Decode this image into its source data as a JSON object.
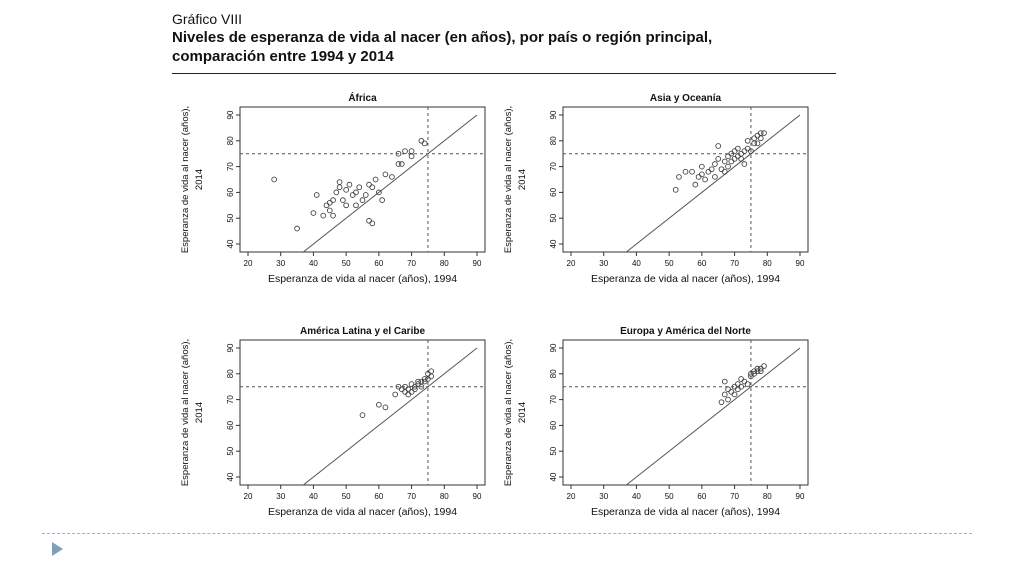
{
  "figure": {
    "label": "Gráfico VIII",
    "title_line1": "Niveles de esperanza de vida al nacer (en años), por país o región principal,",
    "title_line2": "comparación entre 1994 y 2014"
  },
  "colors": {
    "text": "#111111",
    "points": "#444444",
    "lines": "#555555",
    "accent_bullet": "#7f9fc0"
  },
  "icons": {
    "bullet": "triangle-right-icon"
  },
  "chart_data": [
    {
      "type": "scatter",
      "title": "África",
      "xlabel": "Esperanza de vida al nacer (años), 1994",
      "ylabel_line1": "Esperanza de vida al nacer (años),",
      "ylabel_line2": "2014",
      "xlim": [
        20,
        90
      ],
      "ylim": [
        40,
        90
      ],
      "xticks": [
        20,
        30,
        40,
        50,
        60,
        70,
        80,
        90
      ],
      "yticks": [
        40,
        50,
        60,
        70,
        80,
        90
      ],
      "reference_lines": {
        "diagonal": "y = x",
        "vline_x": 75,
        "hline_y": 75
      },
      "points": [
        [
          28,
          65
        ],
        [
          35,
          46
        ],
        [
          40,
          52
        ],
        [
          41,
          59
        ],
        [
          43,
          51
        ],
        [
          44,
          55
        ],
        [
          45,
          53
        ],
        [
          45,
          56
        ],
        [
          46,
          51
        ],
        [
          46,
          57
        ],
        [
          47,
          60
        ],
        [
          48,
          64
        ],
        [
          48,
          62
        ],
        [
          49,
          57
        ],
        [
          50,
          55
        ],
        [
          50,
          61
        ],
        [
          51,
          63
        ],
        [
          52,
          59
        ],
        [
          53,
          60
        ],
        [
          53,
          55
        ],
        [
          54,
          62
        ],
        [
          55,
          57
        ],
        [
          56,
          59
        ],
        [
          57,
          63
        ],
        [
          57,
          49
        ],
        [
          58,
          48
        ],
        [
          58,
          62
        ],
        [
          59,
          65
        ],
        [
          60,
          60
        ],
        [
          61,
          57
        ],
        [
          62,
          67
        ],
        [
          64,
          66
        ],
        [
          66,
          71
        ],
        [
          66,
          75
        ],
        [
          67,
          71
        ],
        [
          68,
          76
        ],
        [
          70,
          74
        ],
        [
          70,
          76
        ],
        [
          73,
          80
        ],
        [
          74,
          79
        ]
      ]
    },
    {
      "type": "scatter",
      "title": "Asia y Oceanía",
      "xlabel": "Esperanza de vida al nacer (años), 1994",
      "ylabel_line1": "Esperanza de vida al nacer (años),",
      "ylabel_line2": "2014",
      "xlim": [
        20,
        90
      ],
      "ylim": [
        40,
        90
      ],
      "xticks": [
        20,
        30,
        40,
        50,
        60,
        70,
        80,
        90
      ],
      "yticks": [
        40,
        50,
        60,
        70,
        80,
        90
      ],
      "reference_lines": {
        "diagonal": "y = x",
        "vline_x": 75,
        "hline_y": 75
      },
      "points": [
        [
          52,
          61
        ],
        [
          53,
          66
        ],
        [
          55,
          68
        ],
        [
          57,
          68
        ],
        [
          58,
          63
        ],
        [
          59,
          66
        ],
        [
          60,
          67
        ],
        [
          60,
          70
        ],
        [
          61,
          65
        ],
        [
          62,
          68
        ],
        [
          63,
          69
        ],
        [
          64,
          71
        ],
        [
          64,
          66
        ],
        [
          65,
          73
        ],
        [
          65,
          78
        ],
        [
          66,
          69
        ],
        [
          67,
          72
        ],
        [
          67,
          68
        ],
        [
          68,
          74
        ],
        [
          68,
          70
        ],
        [
          69,
          75
        ],
        [
          69,
          72
        ],
        [
          70,
          76
        ],
        [
          70,
          73
        ],
        [
          71,
          74
        ],
        [
          71,
          77
        ],
        [
          72,
          75
        ],
        [
          72,
          73
        ],
        [
          73,
          76
        ],
        [
          73,
          71
        ],
        [
          74,
          77
        ],
        [
          74,
          80
        ],
        [
          75,
          76
        ],
        [
          76,
          79
        ],
        [
          76,
          81
        ],
        [
          77,
          79
        ],
        [
          77,
          82
        ],
        [
          78,
          81
        ],
        [
          78,
          83
        ],
        [
          79,
          83
        ]
      ]
    },
    {
      "type": "scatter",
      "title": "América Latina y el Caribe",
      "xlabel": "Esperanza de vida al nacer (años), 1994",
      "ylabel_line1": "Esperanza de vida al nacer (años),",
      "ylabel_line2": "2014",
      "xlim": [
        20,
        90
      ],
      "ylim": [
        40,
        90
      ],
      "xticks": [
        20,
        30,
        40,
        50,
        60,
        70,
        80,
        90
      ],
      "yticks": [
        40,
        50,
        60,
        70,
        80,
        90
      ],
      "reference_lines": {
        "diagonal": "y = x",
        "vline_x": 75,
        "hline_y": 75
      },
      "points": [
        [
          55,
          64
        ],
        [
          60,
          68
        ],
        [
          62,
          67
        ],
        [
          65,
          72
        ],
        [
          66,
          75
        ],
        [
          67,
          74
        ],
        [
          68,
          73
        ],
        [
          68,
          75
        ],
        [
          69,
          72
        ],
        [
          69,
          74
        ],
        [
          70,
          73
        ],
        [
          70,
          76
        ],
        [
          71,
          74
        ],
        [
          71,
          75
        ],
        [
          72,
          77
        ],
        [
          72,
          76
        ],
        [
          73,
          77
        ],
        [
          73,
          75
        ],
        [
          74,
          78
        ],
        [
          74,
          77
        ],
        [
          75,
          80
        ],
        [
          75,
          78
        ],
        [
          76,
          79
        ],
        [
          76,
          81
        ]
      ]
    },
    {
      "type": "scatter",
      "title": "Europa y América del Norte",
      "xlabel": "Esperanza de vida al nacer (años), 1994",
      "ylabel_line1": "Esperanza de vida al nacer (años),",
      "ylabel_line2": "2014",
      "xlim": [
        20,
        90
      ],
      "ylim": [
        40,
        90
      ],
      "xticks": [
        20,
        30,
        40,
        50,
        60,
        70,
        80,
        90
      ],
      "yticks": [
        40,
        50,
        60,
        70,
        80,
        90
      ],
      "reference_lines": {
        "diagonal": "y = x",
        "vline_x": 75,
        "hline_y": 75
      },
      "points": [
        [
          66,
          69
        ],
        [
          67,
          77
        ],
        [
          67,
          72
        ],
        [
          68,
          70
        ],
        [
          68,
          74
        ],
        [
          69,
          73
        ],
        [
          70,
          75
        ],
        [
          70,
          72
        ],
        [
          71,
          76
        ],
        [
          71,
          74
        ],
        [
          72,
          78
        ],
        [
          72,
          75
        ],
        [
          73,
          77
        ],
        [
          74,
          76
        ],
        [
          75,
          80
        ],
        [
          75,
          79
        ],
        [
          76,
          81
        ],
        [
          76,
          80
        ],
        [
          77,
          82
        ],
        [
          77,
          81
        ],
        [
          78,
          82
        ],
        [
          78,
          81
        ],
        [
          79,
          83
        ]
      ]
    }
  ]
}
